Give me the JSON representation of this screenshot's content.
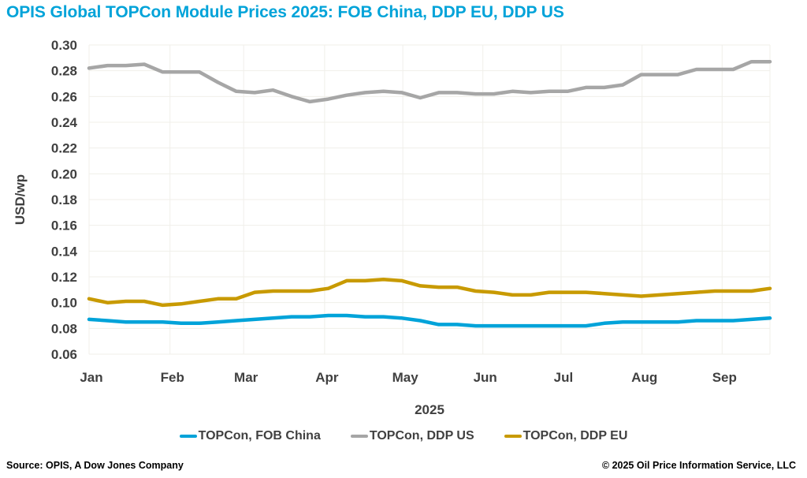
{
  "title": "OPIS Global TOPCon Module Prices 2025: FOB China, DDP EU, DDP US",
  "footer": {
    "source": "Source: OPIS, A Dow Jones Company",
    "copyright": "© 2025 Oil Price Information Service, LLC"
  },
  "colors": {
    "title": "#00A3D9",
    "fob_china": "#00A3D9",
    "ddp_us": "#A6A6A6",
    "ddp_eu": "#C89A00",
    "gridline": "#F0EFEA",
    "tick_text": "#404040"
  },
  "chart_data": {
    "type": "line",
    "title": "OPIS Global TOPCon Module Prices 2025: FOB China, DDP EU, DDP US",
    "xlabel": "2025",
    "ylabel": "USD/wp",
    "ylim": [
      0.06,
      0.3
    ],
    "yticks": [
      0.3,
      0.28,
      0.26,
      0.24,
      0.22,
      0.2,
      0.18,
      0.16,
      0.14,
      0.12,
      0.1,
      0.08,
      0.06
    ],
    "ytick_labels": [
      "0.30",
      "0.28",
      "0.26",
      "0.24",
      "0.22",
      "0.20",
      "0.18",
      "0.16",
      "0.14",
      "0.12",
      "0.10",
      "0.08",
      "0.06"
    ],
    "xtick_labels": [
      "Jan",
      "Feb",
      "Mar",
      "Apr",
      "May",
      "Jun",
      "Jul",
      "Aug",
      "Sep"
    ],
    "xtick_week_index": [
      0,
      4.4,
      8.4,
      12.8,
      17.05,
      21.4,
      25.65,
      30.05,
      34.4
    ],
    "grid": true,
    "legend_position": "bottom",
    "x_unit": "week index (weekly assessments from early Jan 2025)",
    "series": [
      {
        "name": "TOPCon, FOB China",
        "color_key": "fob_china",
        "values": [
          0.087,
          0.086,
          0.085,
          0.085,
          0.085,
          0.084,
          0.084,
          0.085,
          0.086,
          0.087,
          0.088,
          0.089,
          0.089,
          0.09,
          0.09,
          0.089,
          0.089,
          0.088,
          0.086,
          0.083,
          0.083,
          0.082,
          0.082,
          0.082,
          0.082,
          0.082,
          0.082,
          0.082,
          0.084,
          0.085,
          0.085,
          0.085,
          0.085,
          0.086,
          0.086,
          0.086,
          0.087,
          0.088
        ]
      },
      {
        "name": "TOPCon, DDP US",
        "color_key": "ddp_us",
        "values": [
          0.282,
          0.284,
          0.284,
          0.285,
          0.279,
          0.279,
          0.279,
          0.271,
          0.264,
          0.263,
          0.265,
          0.26,
          0.256,
          0.258,
          0.261,
          0.263,
          0.264,
          0.263,
          0.259,
          0.263,
          0.263,
          0.262,
          0.262,
          0.264,
          0.263,
          0.264,
          0.264,
          0.267,
          0.267,
          0.269,
          0.277,
          0.277,
          0.277,
          0.281,
          0.281,
          0.281,
          0.287,
          0.287
        ]
      },
      {
        "name": "TOPCon, DDP EU",
        "color_key": "ddp_eu",
        "values": [
          0.103,
          0.1,
          0.101,
          0.101,
          0.098,
          0.099,
          0.101,
          0.103,
          0.103,
          0.108,
          0.109,
          0.109,
          0.109,
          0.111,
          0.117,
          0.117,
          0.118,
          0.117,
          0.113,
          0.112,
          0.112,
          0.109,
          0.108,
          0.106,
          0.106,
          0.108,
          0.108,
          0.108,
          0.107,
          0.106,
          0.105,
          0.106,
          0.107,
          0.108,
          0.109,
          0.109,
          0.109,
          0.111
        ]
      }
    ]
  }
}
